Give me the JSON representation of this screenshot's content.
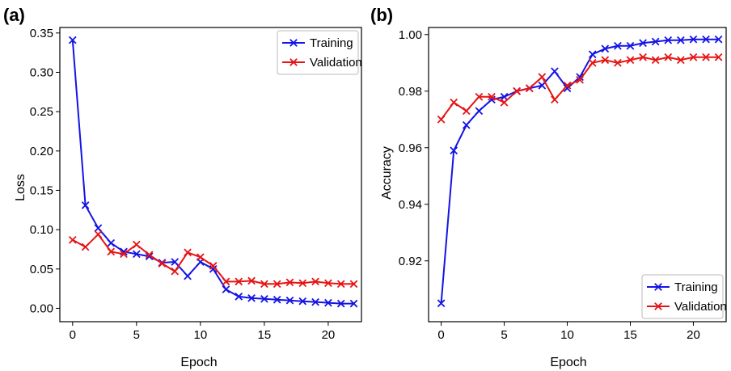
{
  "colors": {
    "training": "#1414e6",
    "validation": "#e61414"
  },
  "chart_data": [
    {
      "type": "line",
      "panel_label": "(a)",
      "xlabel": "Epoch",
      "ylabel": "Loss",
      "xlim": [
        -1,
        22.6
      ],
      "ylim": [
        -0.017,
        0.357
      ],
      "xticks": [
        0,
        5,
        10,
        15,
        20
      ],
      "yticks": [
        0.0,
        0.05,
        0.1,
        0.15,
        0.2,
        0.25,
        0.3,
        0.35
      ],
      "ytick_labels": [
        "0.00",
        "0.05",
        "0.10",
        "0.15",
        "0.20",
        "0.25",
        "0.30",
        "0.35"
      ],
      "legend_position": "top-right",
      "x": [
        0,
        1,
        2,
        3,
        4,
        5,
        6,
        7,
        8,
        9,
        10,
        11,
        12,
        13,
        14,
        15,
        16,
        17,
        18,
        19,
        20,
        21,
        22
      ],
      "series": [
        {
          "name": "Training",
          "color_key": "training",
          "values": [
            0.341,
            0.131,
            0.102,
            0.083,
            0.072,
            0.069,
            0.066,
            0.058,
            0.059,
            0.041,
            0.059,
            0.05,
            0.024,
            0.015,
            0.013,
            0.012,
            0.011,
            0.01,
            0.009,
            0.008,
            0.007,
            0.006,
            0.006
          ]
        },
        {
          "name": "Validation",
          "color_key": "validation",
          "values": [
            0.087,
            0.078,
            0.094,
            0.072,
            0.069,
            0.081,
            0.068,
            0.057,
            0.047,
            0.071,
            0.065,
            0.054,
            0.034,
            0.034,
            0.035,
            0.031,
            0.031,
            0.033,
            0.032,
            0.034,
            0.032,
            0.031,
            0.031
          ]
        }
      ]
    },
    {
      "type": "line",
      "panel_label": "(b)",
      "xlabel": "Epoch",
      "ylabel": "Accuracy",
      "xlim": [
        -1,
        22.6
      ],
      "ylim": [
        0.8985,
        1.0025
      ],
      "xticks": [
        0,
        5,
        10,
        15,
        20
      ],
      "yticks": [
        0.92,
        0.94,
        0.96,
        0.98,
        1.0
      ],
      "ytick_labels": [
        "0.92",
        "0.94",
        "0.96",
        "0.98",
        "1.00"
      ],
      "legend_position": "bottom-right",
      "x": [
        0,
        1,
        2,
        3,
        4,
        5,
        6,
        7,
        8,
        9,
        10,
        11,
        12,
        13,
        14,
        15,
        16,
        17,
        18,
        19,
        20,
        21,
        22
      ],
      "series": [
        {
          "name": "Training",
          "color_key": "training",
          "values": [
            0.905,
            0.959,
            0.968,
            0.973,
            0.977,
            0.978,
            0.98,
            0.981,
            0.982,
            0.987,
            0.981,
            0.985,
            0.993,
            0.995,
            0.996,
            0.996,
            0.997,
            0.9975,
            0.998,
            0.998,
            0.9983,
            0.9983,
            0.9983
          ]
        },
        {
          "name": "Validation",
          "color_key": "validation",
          "values": [
            0.97,
            0.976,
            0.973,
            0.978,
            0.978,
            0.976,
            0.98,
            0.981,
            0.985,
            0.977,
            0.982,
            0.984,
            0.99,
            0.991,
            0.99,
            0.991,
            0.992,
            0.991,
            0.992,
            0.991,
            0.992,
            0.992,
            0.992
          ]
        }
      ]
    }
  ]
}
